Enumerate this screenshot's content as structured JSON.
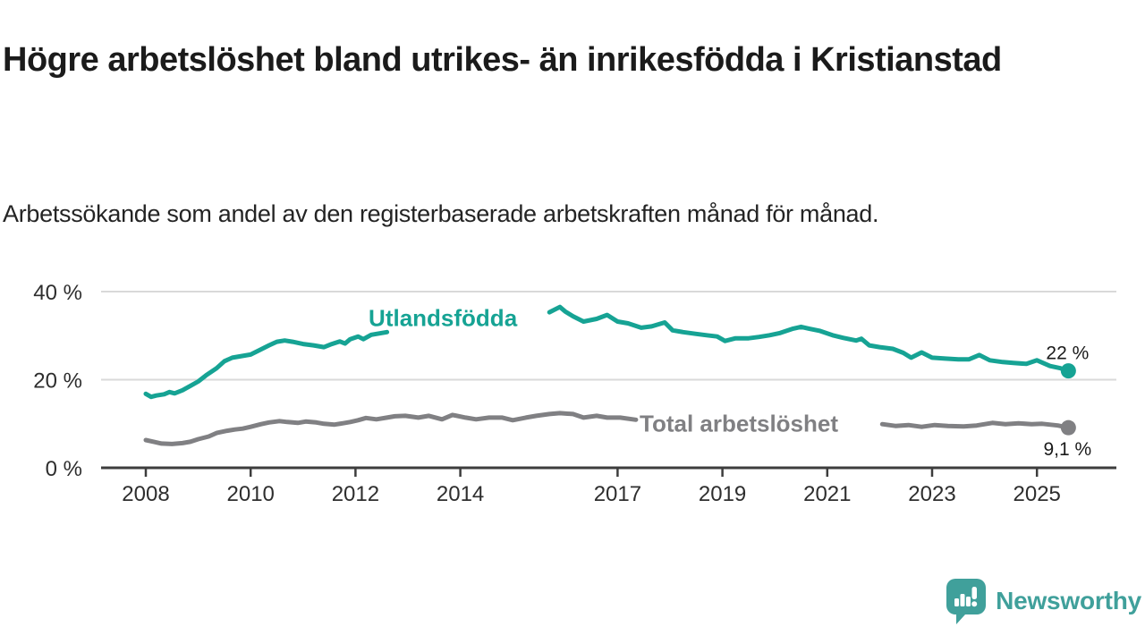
{
  "header": {
    "title": "Högre arbetslöshet bland utrikes- än inrikesfödda i Kristianstad",
    "subtitle": "Arbetssökande som andel av den registerbaserade arbetskraften månad för månad."
  },
  "chart_data": {
    "type": "line",
    "unit": "percent of registered labour force",
    "grid": "horizontal gridlines on",
    "y_axis": {
      "ticks": [
        0,
        20,
        40
      ],
      "tick_labels": [
        "0 %",
        "20 %",
        "40 %"
      ],
      "ylim": [
        0,
        43
      ]
    },
    "x_axis": {
      "tick_years": [
        2008,
        2010,
        2012,
        2014,
        2017,
        2019,
        2021,
        2023,
        2025
      ],
      "tick_labels": [
        "2008",
        "2010",
        "2012",
        "2014",
        "2017",
        "2019",
        "2021",
        "2023",
        "2025"
      ],
      "xlim": [
        2007.1,
        2026.5
      ]
    },
    "series": [
      {
        "name": "Utlandsfödda",
        "color": "#16a394",
        "label_pos": [
          2012.25,
          34.1
        ],
        "end_label": "22 %",
        "end_label_side": "above",
        "end_value": 22,
        "segments": [
          [
            [
              2008.0,
              16.8
            ],
            [
              2008.1,
              16.1
            ],
            [
              2008.2,
              16.4
            ],
            [
              2008.35,
              16.7
            ],
            [
              2008.45,
              17.2
            ],
            [
              2008.55,
              16.9
            ],
            [
              2008.7,
              17.6
            ],
            [
              2008.85,
              18.6
            ],
            [
              2009.0,
              19.6
            ],
            [
              2009.15,
              21.0
            ],
            [
              2009.35,
              22.6
            ],
            [
              2009.5,
              24.2
            ],
            [
              2009.65,
              25.0
            ],
            [
              2009.8,
              25.3
            ],
            [
              2010.0,
              25.7
            ],
            [
              2010.15,
              26.6
            ],
            [
              2010.35,
              27.8
            ],
            [
              2010.5,
              28.6
            ],
            [
              2010.65,
              28.9
            ],
            [
              2010.8,
              28.6
            ],
            [
              2011.0,
              28.1
            ],
            [
              2011.2,
              27.8
            ],
            [
              2011.4,
              27.4
            ],
            [
              2011.55,
              28.1
            ],
            [
              2011.7,
              28.7
            ],
            [
              2011.8,
              28.2
            ],
            [
              2011.9,
              29.2
            ],
            [
              2012.05,
              29.8
            ],
            [
              2012.15,
              29.2
            ],
            [
              2012.3,
              30.2
            ],
            [
              2012.45,
              30.5
            ],
            [
              2012.6,
              30.8
            ]
          ],
          [
            [
              2015.7,
              35.3
            ],
            [
              2015.9,
              36.5
            ],
            [
              2016.0,
              35.5
            ],
            [
              2016.15,
              34.4
            ],
            [
              2016.35,
              33.2
            ],
            [
              2016.6,
              33.8
            ],
            [
              2016.8,
              34.7
            ],
            [
              2017.0,
              33.2
            ],
            [
              2017.2,
              32.8
            ],
            [
              2017.45,
              31.8
            ],
            [
              2017.65,
              32.1
            ],
            [
              2017.9,
              33.0
            ],
            [
              2018.05,
              31.2
            ],
            [
              2018.25,
              30.8
            ],
            [
              2018.5,
              30.4
            ],
            [
              2018.7,
              30.1
            ],
            [
              2018.9,
              29.8
            ],
            [
              2019.05,
              28.8
            ],
            [
              2019.25,
              29.4
            ],
            [
              2019.5,
              29.4
            ],
            [
              2019.7,
              29.7
            ],
            [
              2019.9,
              30.1
            ],
            [
              2020.1,
              30.6
            ],
            [
              2020.35,
              31.6
            ],
            [
              2020.5,
              32.0
            ],
            [
              2020.65,
              31.6
            ],
            [
              2020.85,
              31.1
            ],
            [
              2021.1,
              30.1
            ],
            [
              2021.3,
              29.5
            ],
            [
              2021.55,
              28.9
            ],
            [
              2021.65,
              29.3
            ],
            [
              2021.8,
              27.8
            ],
            [
              2022.0,
              27.4
            ],
            [
              2022.25,
              27.0
            ],
            [
              2022.45,
              26.1
            ],
            [
              2022.6,
              25.0
            ],
            [
              2022.8,
              26.2
            ],
            [
              2023.0,
              25.0
            ],
            [
              2023.25,
              24.8
            ],
            [
              2023.5,
              24.6
            ],
            [
              2023.7,
              24.6
            ],
            [
              2023.9,
              25.6
            ],
            [
              2024.1,
              24.4
            ],
            [
              2024.35,
              24.0
            ],
            [
              2024.55,
              23.8
            ],
            [
              2024.8,
              23.6
            ],
            [
              2025.0,
              24.4
            ],
            [
              2025.25,
              23.1
            ],
            [
              2025.45,
              22.6
            ],
            [
              2025.6,
              22.0
            ]
          ]
        ]
      },
      {
        "name": "Total arbetslöshet",
        "color": "#808083",
        "label_pos": [
          2017.42,
          10.15
        ],
        "end_label": "9,1 %",
        "end_label_side": "below",
        "end_value": 9.1,
        "segments": [
          [
            [
              2008.0,
              6.3
            ],
            [
              2008.15,
              5.9
            ],
            [
              2008.3,
              5.5
            ],
            [
              2008.5,
              5.4
            ],
            [
              2008.7,
              5.6
            ],
            [
              2008.85,
              5.9
            ],
            [
              2009.0,
              6.5
            ],
            [
              2009.2,
              7.1
            ],
            [
              2009.35,
              7.9
            ],
            [
              2009.55,
              8.4
            ],
            [
              2009.7,
              8.7
            ],
            [
              2009.85,
              8.9
            ],
            [
              2010.0,
              9.3
            ],
            [
              2010.2,
              9.9
            ],
            [
              2010.35,
              10.3
            ],
            [
              2010.55,
              10.6
            ],
            [
              2010.7,
              10.4
            ],
            [
              2010.9,
              10.2
            ],
            [
              2011.05,
              10.5
            ],
            [
              2011.25,
              10.3
            ],
            [
              2011.4,
              10.0
            ],
            [
              2011.6,
              9.8
            ],
            [
              2011.75,
              10.1
            ],
            [
              2011.9,
              10.4
            ],
            [
              2012.05,
              10.8
            ],
            [
              2012.2,
              11.3
            ],
            [
              2012.4,
              11.0
            ],
            [
              2012.6,
              11.4
            ],
            [
              2012.75,
              11.7
            ],
            [
              2012.95,
              11.8
            ],
            [
              2013.2,
              11.4
            ],
            [
              2013.4,
              11.8
            ],
            [
              2013.65,
              11.0
            ],
            [
              2013.85,
              12.0
            ],
            [
              2014.1,
              11.4
            ],
            [
              2014.3,
              11.0
            ],
            [
              2014.55,
              11.4
            ],
            [
              2014.8,
              11.4
            ],
            [
              2015.0,
              10.8
            ],
            [
              2015.25,
              11.4
            ],
            [
              2015.45,
              11.8
            ],
            [
              2015.7,
              12.2
            ],
            [
              2015.9,
              12.4
            ],
            [
              2016.15,
              12.2
            ],
            [
              2016.35,
              11.4
            ],
            [
              2016.6,
              11.8
            ],
            [
              2016.8,
              11.4
            ],
            [
              2017.05,
              11.4
            ],
            [
              2017.35,
              10.9
            ]
          ],
          [
            [
              2022.05,
              9.9
            ],
            [
              2022.3,
              9.5
            ],
            [
              2022.55,
              9.7
            ],
            [
              2022.8,
              9.3
            ],
            [
              2023.05,
              9.7
            ],
            [
              2023.3,
              9.5
            ],
            [
              2023.6,
              9.4
            ],
            [
              2023.85,
              9.6
            ],
            [
              2024.15,
              10.2
            ],
            [
              2024.4,
              9.9
            ],
            [
              2024.65,
              10.1
            ],
            [
              2024.9,
              9.9
            ],
            [
              2025.1,
              10.0
            ],
            [
              2025.4,
              9.6
            ],
            [
              2025.6,
              9.1
            ]
          ]
        ]
      }
    ],
    "colors": {
      "gridline": "#d9d9d9",
      "axis": "#3d3d3d",
      "tick_text": "#2e2e2e",
      "end_label_text": "#1a1a1a"
    }
  },
  "footer": {
    "brand": "Newsworthy",
    "logo_color": "#40a09b",
    "logo_icon": "speech-bubble-bar-chart-exclamation"
  }
}
